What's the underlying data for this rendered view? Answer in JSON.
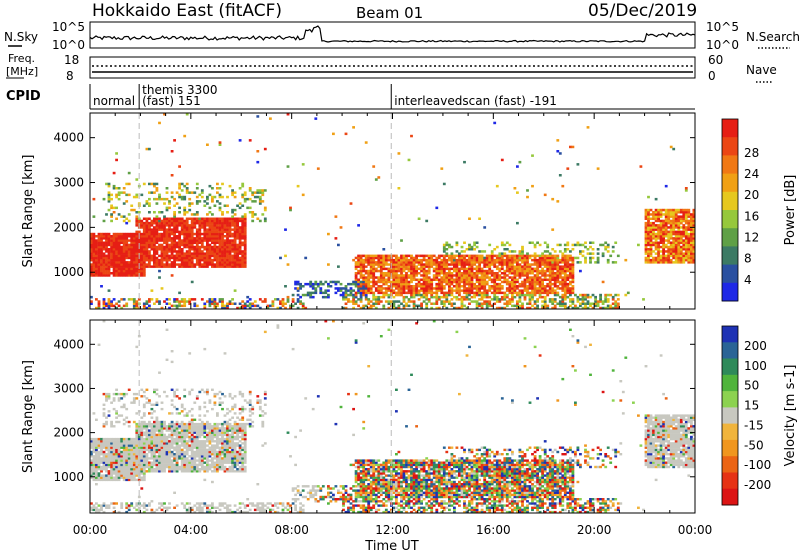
{
  "header": {
    "title": "Hokkaido East (fitACF)",
    "beam": "Beam 01",
    "date": "05/Dec/2019"
  },
  "noise_panel": {
    "left_label": "N.Sky",
    "left_ticks": [
      "10^5",
      "10^0"
    ],
    "right_ticks": [
      "10^5",
      "10^0"
    ],
    "right_label": "N.Search"
  },
  "freq_panel": {
    "label_top": "Freq.",
    "label_unit": "[MHz]",
    "left_ticks": [
      "18",
      "8"
    ],
    "right_ticks": [
      "60",
      "0"
    ],
    "right_label": "Nave"
  },
  "cpid_panel": {
    "label": "CPID",
    "segments": [
      {
        "start_hour": 0.0,
        "line1": "normal",
        "line2": ""
      },
      {
        "start_hour": 1.95,
        "line1": "themis 3300",
        "line2": "(fast) 151"
      },
      {
        "start_hour": 11.95,
        "line1": "interleavedscan (fast) -191",
        "line2": ""
      }
    ]
  },
  "x_axis": {
    "label": "Time UT",
    "ticks": [
      "00:00",
      "04:00",
      "08:00",
      "12:00",
      "16:00",
      "20:00",
      "00:00"
    ]
  },
  "chart_data": [
    {
      "type": "heatmap",
      "ylabel": "Slant Range [km]",
      "yticks": [
        "1000",
        "2000",
        "3000",
        "4000"
      ],
      "colorbar": {
        "label": "Power [dB]",
        "ticks": [
          "4",
          "8",
          "12",
          "16",
          "20",
          "24",
          "28"
        ],
        "colors": [
          "#1e28e6",
          "#2a50a0",
          "#3c7a64",
          "#5fa046",
          "#96c83c",
          "#e6c81e",
          "#f0a014",
          "#f07814",
          "#eb4614",
          "#e61e14"
        ]
      },
      "xlim": [
        0,
        24
      ],
      "ylim": [
        180,
        4550
      ]
    },
    {
      "type": "heatmap",
      "ylabel": "Slant Range [km]",
      "yticks": [
        "1000",
        "2000",
        "3000",
        "4000"
      ],
      "colorbar": {
        "label": "Velocity [m s-1]",
        "ticks": [
          "200",
          "100",
          "50",
          "15",
          "-15",
          "-50",
          "-100",
          "-200"
        ],
        "colors": [
          "#1e32b4",
          "#2a6496",
          "#2e8a5a",
          "#50b43c",
          "#8cd250",
          "#c8c8c0",
          "#f0b43c",
          "#f0961e",
          "#eb6414",
          "#e63214",
          "#dc1414"
        ]
      },
      "xlim": [
        0,
        24
      ],
      "ylim": [
        180,
        4550
      ]
    }
  ]
}
